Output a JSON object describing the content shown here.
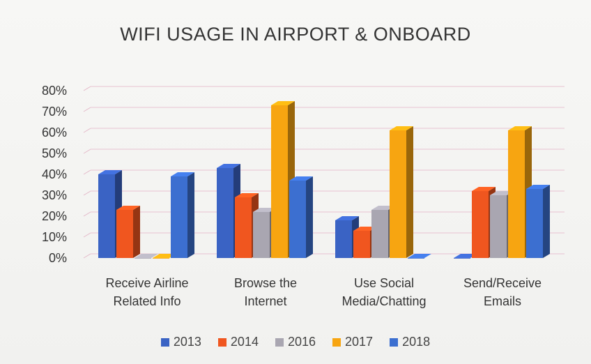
{
  "chart_data": {
    "type": "bar",
    "title": "WIFI USAGE IN AIRPORT & ONBOARD",
    "categories": [
      [
        "Receive Airline",
        "Related Info"
      ],
      [
        "Browse the",
        "Internet"
      ],
      [
        "Use Social",
        "Media/Chatting"
      ],
      [
        "Send/Receive",
        "Emails"
      ]
    ],
    "series": [
      {
        "name": "2013",
        "color": "#3a63c4",
        "values": [
          0.4,
          0.43,
          0.18,
          0.0
        ]
      },
      {
        "name": "2014",
        "color": "#f0561f",
        "values": [
          0.23,
          0.29,
          0.13,
          0.32
        ]
      },
      {
        "name": "2016",
        "color": "#a9a6b1",
        "values": [
          0.0,
          0.22,
          0.23,
          0.3
        ]
      },
      {
        "name": "2017",
        "color": "#f7a511",
        "values": [
          0.0,
          0.73,
          0.61,
          0.61
        ]
      },
      {
        "name": "2018",
        "color": "#3c6fd0",
        "values": [
          0.39,
          0.37,
          0.0,
          0.33
        ]
      }
    ],
    "ylim": [
      0,
      0.8
    ],
    "yticks": [
      "0%",
      "10%",
      "20%",
      "30%",
      "40%",
      "50%",
      "60%",
      "70%",
      "80%"
    ],
    "grid": true,
    "legend_position": "bottom"
  }
}
